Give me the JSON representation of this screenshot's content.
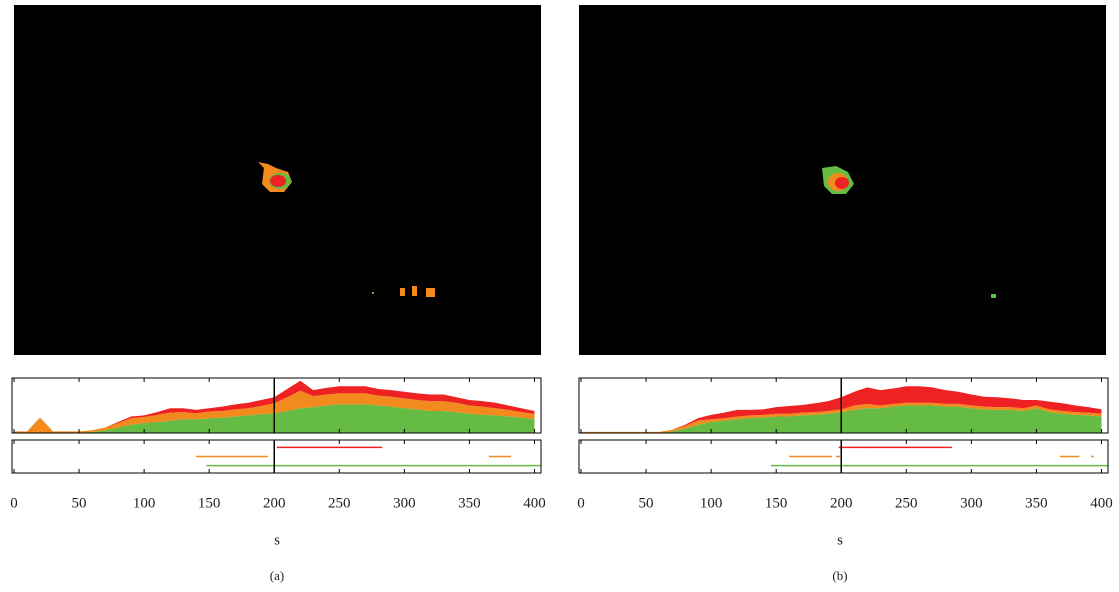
{
  "chart_data": [
    {
      "type": "area",
      "xlim": [
        0,
        405
      ],
      "ylim": [
        0,
        100
      ],
      "xticks": [
        0,
        50,
        100,
        150,
        200,
        250,
        300,
        350,
        400
      ],
      "marker_x": 200,
      "x": [
        0,
        10,
        20,
        30,
        40,
        50,
        60,
        70,
        80,
        90,
        100,
        110,
        120,
        130,
        140,
        150,
        160,
        170,
        180,
        190,
        200,
        210,
        220,
        230,
        240,
        250,
        260,
        270,
        280,
        290,
        300,
        310,
        320,
        330,
        340,
        350,
        360,
        370,
        380,
        390,
        400
      ],
      "series": [
        {
          "color": "#66bb44",
          "values": [
            0,
            0,
            0,
            0,
            0,
            0,
            2,
            5,
            10,
            15,
            18,
            20,
            22,
            25,
            25,
            27,
            28,
            30,
            32,
            34,
            36,
            40,
            45,
            47,
            50,
            52,
            52,
            52,
            50,
            48,
            45,
            43,
            40,
            40,
            38,
            35,
            33,
            32,
            30,
            28,
            25
          ]
        },
        {
          "color": "#f28a1e",
          "values": [
            3,
            3,
            28,
            3,
            3,
            3,
            3,
            5,
            8,
            12,
            11,
            13,
            15,
            13,
            11,
            12,
            12,
            13,
            13,
            15,
            18,
            25,
            32,
            20,
            20,
            20,
            20,
            20,
            18,
            18,
            18,
            17,
            18,
            18,
            17,
            15,
            15,
            13,
            12,
            10,
            10
          ]
        },
        {
          "color": "#ee2222",
          "values": [
            0,
            0,
            0,
            0,
            0,
            0,
            0,
            0,
            2,
            3,
            3,
            5,
            8,
            7,
            6,
            6,
            8,
            9,
            10,
            11,
            11,
            15,
            18,
            11,
            12,
            13,
            13,
            13,
            12,
            12,
            12,
            12,
            12,
            12,
            10,
            10,
            10,
            10,
            8,
            7,
            5
          ]
        }
      ]
    },
    {
      "type": "timeline",
      "xlim": [
        0,
        405
      ],
      "xticks": [
        0,
        50,
        100,
        150,
        200,
        250,
        300,
        350,
        400
      ],
      "marker_x": 200,
      "xlabel": "s",
      "caption": "(a)",
      "series": [
        {
          "color": "#ee2222",
          "segments": [
            [
              202,
              283
            ]
          ]
        },
        {
          "color": "#f28a1e",
          "segments": [
            [
              140,
              195
            ],
            [
              365,
              382
            ]
          ]
        },
        {
          "color": "#66bb44",
          "segments": [
            [
              148,
              405
            ]
          ]
        }
      ]
    },
    {
      "type": "area",
      "xlim": [
        0,
        405
      ],
      "ylim": [
        0,
        100
      ],
      "xticks": [
        0,
        50,
        100,
        150,
        200,
        250,
        300,
        350,
        400
      ],
      "marker_x": 200,
      "x": [
        0,
        10,
        20,
        30,
        40,
        50,
        60,
        70,
        80,
        90,
        100,
        110,
        120,
        130,
        140,
        150,
        160,
        170,
        180,
        190,
        200,
        210,
        220,
        230,
        240,
        250,
        260,
        270,
        280,
        290,
        300,
        310,
        320,
        330,
        340,
        350,
        360,
        370,
        380,
        390,
        400
      ],
      "series": [
        {
          "color": "#66bb44",
          "values": [
            0,
            0,
            0,
            0,
            0,
            0,
            0,
            3,
            8,
            15,
            20,
            22,
            25,
            27,
            28,
            30,
            30,
            32,
            33,
            35,
            38,
            42,
            45,
            45,
            48,
            50,
            50,
            50,
            48,
            48,
            45,
            43,
            42,
            42,
            40,
            45,
            38,
            35,
            33,
            32,
            30
          ]
        },
        {
          "color": "#f28a1e",
          "values": [
            2,
            2,
            2,
            2,
            2,
            2,
            2,
            3,
            5,
            8,
            5,
            5,
            5,
            5,
            5,
            5,
            5,
            5,
            5,
            5,
            5,
            8,
            8,
            5,
            5,
            5,
            5,
            5,
            5,
            5,
            5,
            5,
            5,
            5,
            5,
            5,
            5,
            5,
            5,
            5,
            5
          ]
        },
        {
          "color": "#ee2222",
          "values": [
            0,
            0,
            0,
            0,
            0,
            0,
            0,
            0,
            2,
            4,
            8,
            10,
            12,
            10,
            10,
            12,
            14,
            14,
            16,
            18,
            22,
            25,
            30,
            28,
            28,
            30,
            30,
            28,
            25,
            22,
            20,
            18,
            18,
            16,
            15,
            10,
            14,
            14,
            12,
            10,
            8
          ]
        }
      ]
    },
    {
      "type": "timeline",
      "xlim": [
        0,
        405
      ],
      "xticks": [
        0,
        50,
        100,
        150,
        200,
        250,
        300,
        350,
        400
      ],
      "marker_x": 200,
      "xlabel": "s",
      "caption": "(b)",
      "series": [
        {
          "color": "#ee2222",
          "segments": [
            [
              198,
              285
            ],
            [
              221,
              222
            ]
          ]
        },
        {
          "color": "#f28a1e",
          "segments": [
            [
              160,
              193
            ],
            [
              196,
              199
            ],
            [
              368,
              383
            ],
            [
              392,
              394
            ]
          ]
        },
        {
          "color": "#66bb44",
          "segments": [
            [
              146,
              405
            ]
          ]
        }
      ]
    }
  ]
}
